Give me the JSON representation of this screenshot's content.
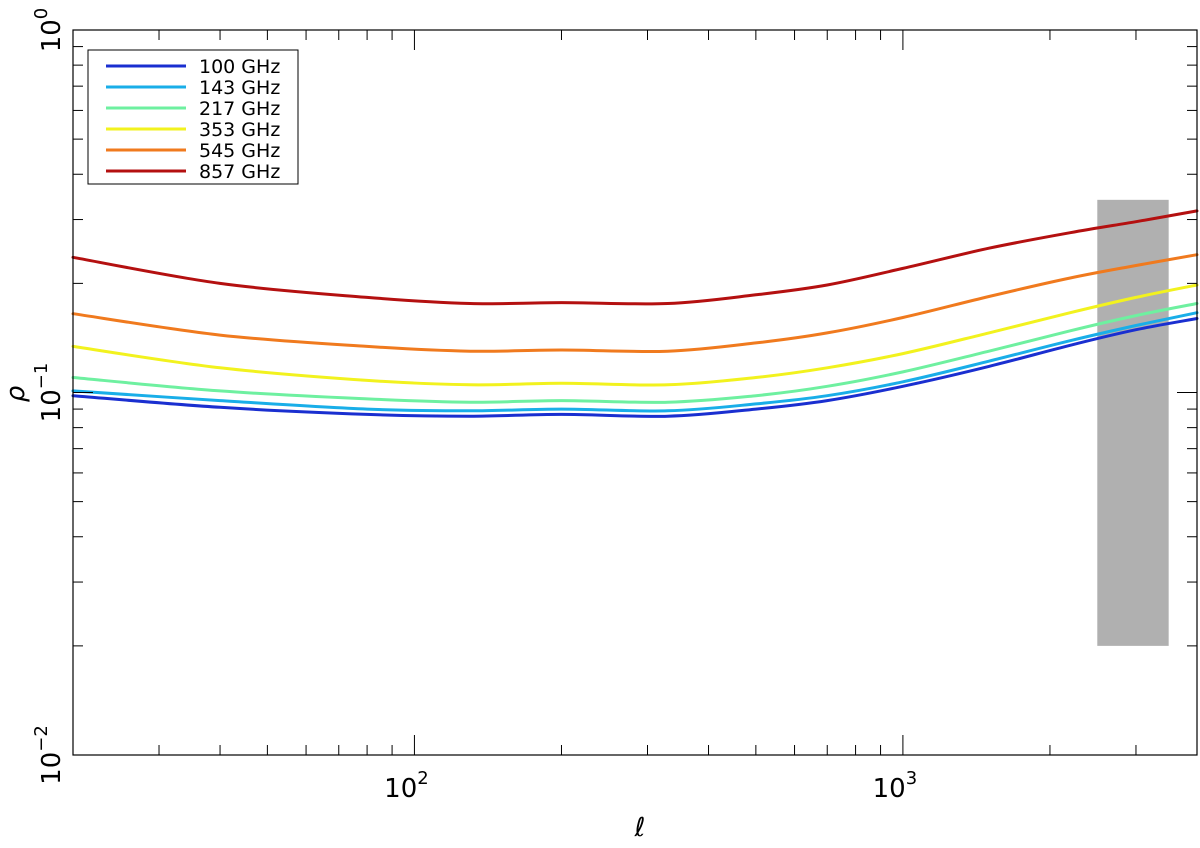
{
  "chart_data": {
    "type": "line",
    "xlabel": "ℓ",
    "ylabel": "ρ",
    "x_scale": "log",
    "y_scale": "log",
    "xlim": [
      20,
      4000
    ],
    "ylim": [
      0.01,
      1
    ],
    "x_ticks": [
      {
        "value": 100,
        "base": "10",
        "exp": "2"
      },
      {
        "value": 1000,
        "base": "10",
        "exp": "3"
      }
    ],
    "y_ticks": [
      {
        "value": 0.01,
        "base": "10",
        "exp": "−2"
      },
      {
        "value": 0.1,
        "base": "10",
        "exp": "−1"
      },
      {
        "value": 1,
        "base": "10",
        "exp": "0"
      }
    ],
    "grid": false,
    "legend_position": "top-left",
    "shaded_region": {
      "x": [
        2500,
        3500
      ],
      "y": [
        0.02,
        0.34
      ],
      "color": "#b0b0b0"
    },
    "series": [
      {
        "name": "100 GHz",
        "color": "#1a2fd0",
        "points": [
          [
            20,
            0.098
          ],
          [
            40,
            0.091
          ],
          [
            80,
            0.087
          ],
          [
            130,
            0.086
          ],
          [
            200,
            0.087
          ],
          [
            330,
            0.086
          ],
          [
            500,
            0.09
          ],
          [
            700,
            0.095
          ],
          [
            1000,
            0.104
          ],
          [
            1500,
            0.118
          ],
          [
            2200,
            0.135
          ],
          [
            3000,
            0.149
          ],
          [
            4000,
            0.16
          ]
        ]
      },
      {
        "name": "143 GHz",
        "color": "#19aee8",
        "points": [
          [
            20,
            0.101
          ],
          [
            40,
            0.095
          ],
          [
            80,
            0.09
          ],
          [
            130,
            0.089
          ],
          [
            200,
            0.09
          ],
          [
            330,
            0.089
          ],
          [
            500,
            0.093
          ],
          [
            700,
            0.098
          ],
          [
            1000,
            0.107
          ],
          [
            1500,
            0.122
          ],
          [
            2200,
            0.139
          ],
          [
            3000,
            0.153
          ],
          [
            4000,
            0.166
          ]
        ]
      },
      {
        "name": "217 GHz",
        "color": "#6ef0a0",
        "points": [
          [
            20,
            0.11
          ],
          [
            40,
            0.101
          ],
          [
            80,
            0.096
          ],
          [
            130,
            0.094
          ],
          [
            200,
            0.095
          ],
          [
            330,
            0.094
          ],
          [
            500,
            0.098
          ],
          [
            700,
            0.104
          ],
          [
            1000,
            0.114
          ],
          [
            1500,
            0.13
          ],
          [
            2200,
            0.148
          ],
          [
            3000,
            0.163
          ],
          [
            4000,
            0.176
          ]
        ]
      },
      {
        "name": "353 GHz",
        "color": "#f2f21e",
        "points": [
          [
            20,
            0.134
          ],
          [
            40,
            0.117
          ],
          [
            80,
            0.108
          ],
          [
            130,
            0.105
          ],
          [
            200,
            0.106
          ],
          [
            330,
            0.105
          ],
          [
            500,
            0.11
          ],
          [
            700,
            0.117
          ],
          [
            1000,
            0.128
          ],
          [
            1500,
            0.146
          ],
          [
            2200,
            0.166
          ],
          [
            3000,
            0.183
          ],
          [
            4000,
            0.198
          ]
        ]
      },
      {
        "name": "545 GHz",
        "color": "#f07a1e",
        "points": [
          [
            20,
            0.165
          ],
          [
            40,
            0.144
          ],
          [
            80,
            0.134
          ],
          [
            130,
            0.13
          ],
          [
            200,
            0.131
          ],
          [
            330,
            0.13
          ],
          [
            500,
            0.137
          ],
          [
            700,
            0.146
          ],
          [
            1000,
            0.161
          ],
          [
            1500,
            0.184
          ],
          [
            2200,
            0.207
          ],
          [
            3000,
            0.224
          ],
          [
            4000,
            0.24
          ]
        ]
      },
      {
        "name": "857 GHz",
        "color": "#b41010",
        "points": [
          [
            20,
            0.236
          ],
          [
            40,
            0.2
          ],
          [
            80,
            0.183
          ],
          [
            130,
            0.176
          ],
          [
            200,
            0.177
          ],
          [
            330,
            0.176
          ],
          [
            500,
            0.186
          ],
          [
            700,
            0.198
          ],
          [
            1000,
            0.22
          ],
          [
            1500,
            0.25
          ],
          [
            2200,
            0.276
          ],
          [
            3000,
            0.296
          ],
          [
            4000,
            0.317
          ]
        ]
      }
    ]
  }
}
